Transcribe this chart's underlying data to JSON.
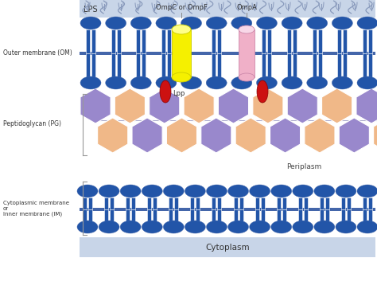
{
  "bg_color": "#c8d5e8",
  "white_bg": "#ffffff",
  "blue": "#2255a8",
  "yellow": "#f5f000",
  "pink": "#f0b0c8",
  "red": "#cc1111",
  "purple": "#9988cc",
  "peach": "#f0b888",
  "gray_line": "#999999",
  "text_dark": "#333333",
  "lps_label": "LPS",
  "om_label": "Outer membrane (OM)",
  "pg_label": "Peptidoglycan (PG)",
  "periplasm_label": "Periplasm",
  "cm_label": "Cytoplasmic membrane\nor\nInner membrane (IM)",
  "cytoplasm_label": "Cytoplasm",
  "ompC_label": "OmpC or OmpF",
  "ompA_label": "OmpA",
  "lpp_label": "Lpp",
  "figw": 4.74,
  "figh": 3.73,
  "dpi": 100
}
